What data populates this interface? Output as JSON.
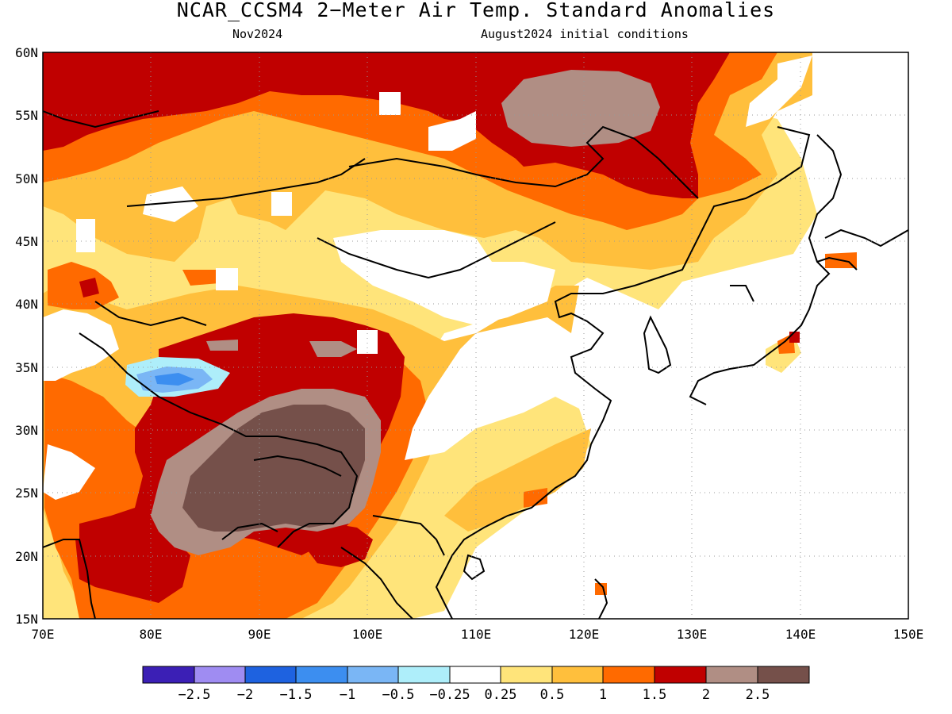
{
  "title": "NCAR_CCSM4 2−Meter Air Temp. Standard Anomalies",
  "subtitle_left": "Nov2024",
  "subtitle_right": "August2024 initial conditions",
  "map": {
    "lon_range": [
      70,
      150
    ],
    "lat_range": [
      15,
      60
    ],
    "lat_ticks": [
      {
        "value": 60,
        "label": "60N"
      },
      {
        "value": 55,
        "label": "55N"
      },
      {
        "value": 50,
        "label": "50N"
      },
      {
        "value": 45,
        "label": "45N"
      },
      {
        "value": 40,
        "label": "40N"
      },
      {
        "value": 35,
        "label": "35N"
      },
      {
        "value": 30,
        "label": "30N"
      },
      {
        "value": 25,
        "label": "25N"
      },
      {
        "value": 20,
        "label": "20N"
      },
      {
        "value": 15,
        "label": "15N"
      }
    ],
    "lon_ticks": [
      {
        "value": 70,
        "label": "70E"
      },
      {
        "value": 80,
        "label": "80E"
      },
      {
        "value": 90,
        "label": "90E"
      },
      {
        "value": 100,
        "label": "100E"
      },
      {
        "value": 110,
        "label": "110E"
      },
      {
        "value": 120,
        "label": "120E"
      },
      {
        "value": 130,
        "label": "130E"
      },
      {
        "value": 140,
        "label": "140E"
      },
      {
        "value": 150,
        "label": "150E"
      }
    ],
    "grid": "dotted",
    "colors": {
      "neutral": "#ffffff",
      "pos_0_25": "#ffe47a",
      "pos_0_5": "#ffbf3c",
      "pos_1": "#ff6a00",
      "pos_1_5": "#c00000",
      "pos_2": "#b08e84",
      "pos_2_5": "#75504a",
      "neg_0_5": "#aeeefa",
      "neg_1": "#7ab6f5",
      "neg_1_5": "#3c8ef0"
    }
  },
  "colorbar": {
    "colors": [
      "#3b1fb5",
      "#9f8cf2",
      "#1e62e0",
      "#3c8ef0",
      "#7ab6f5",
      "#aeeefa",
      "#ffffff",
      "#ffe47a",
      "#ffbf3c",
      "#ff6a00",
      "#c00000",
      "#b08e84",
      "#75504a"
    ],
    "labels": [
      "−2.5",
      "−2",
      "−1.5",
      "−1",
      "−0.5",
      "−0.25",
      "0.25",
      "0.5",
      "1",
      "1.5",
      "2",
      "2.5"
    ]
  }
}
